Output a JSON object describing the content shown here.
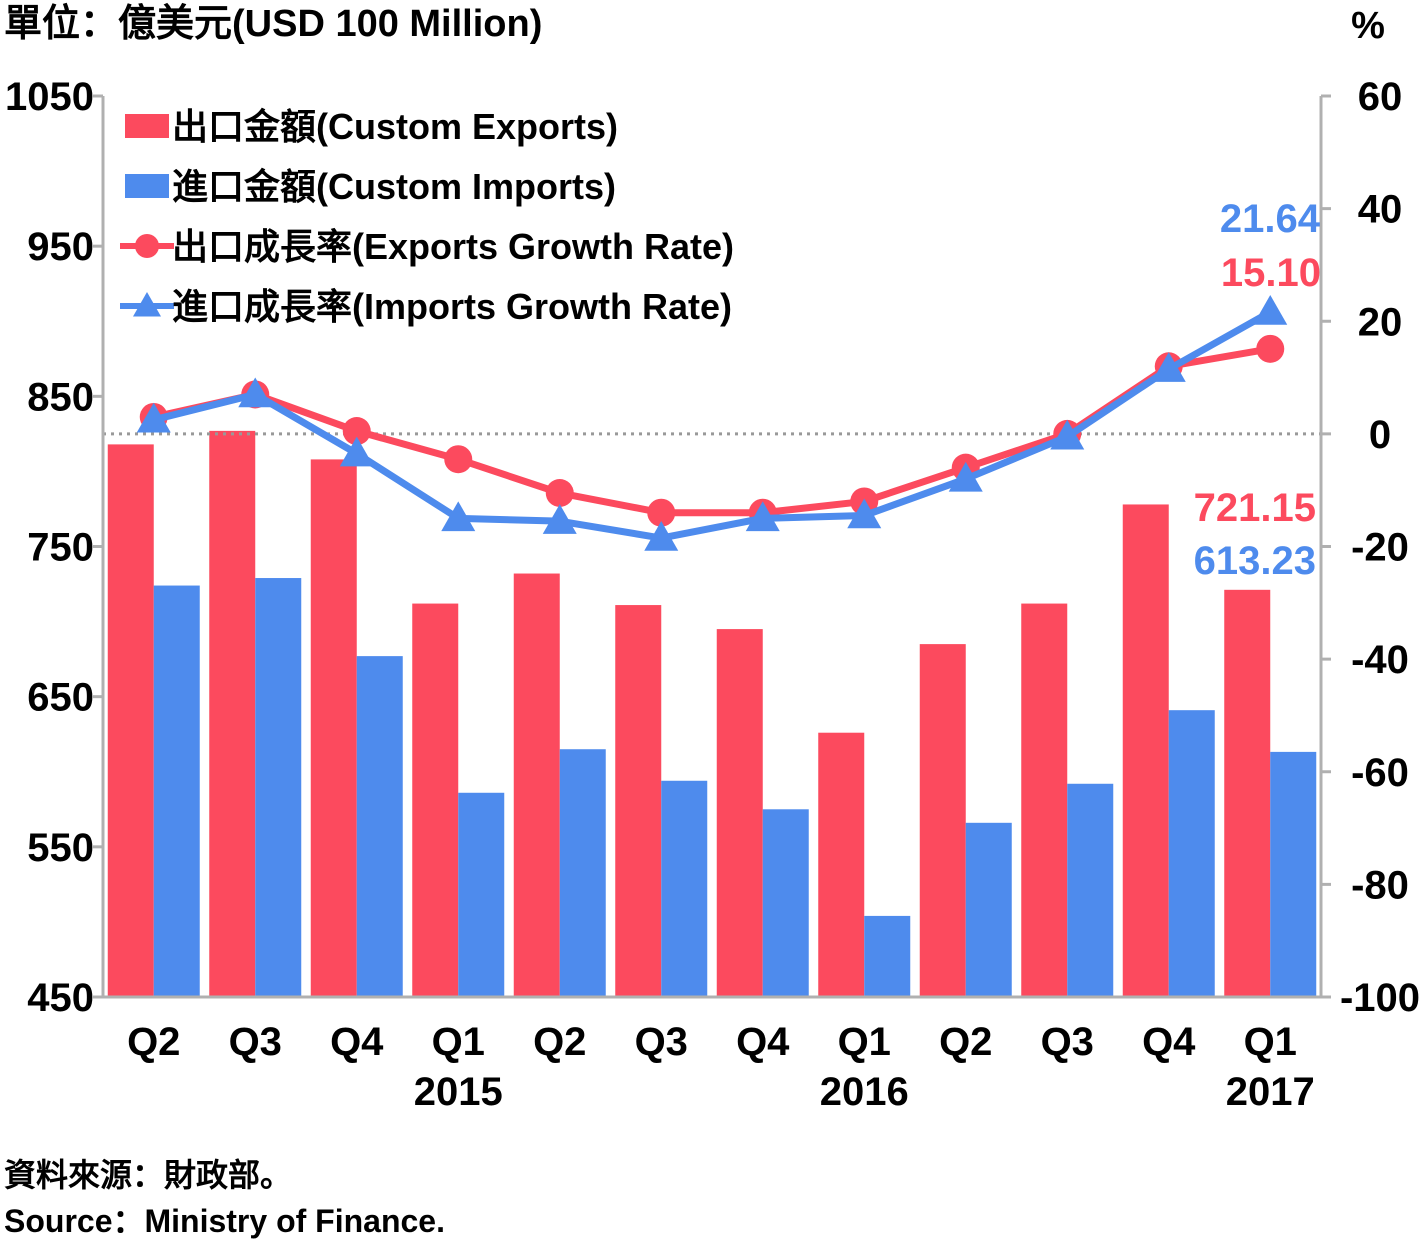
{
  "chart_data": {
    "type": "bar",
    "y_left_label": "單位：億美元(USD 100 Million)",
    "y_right_label": "%",
    "ylim_left": [
      450,
      1050
    ],
    "yticks_left": [
      450,
      550,
      650,
      750,
      850,
      950,
      1050
    ],
    "ylim_right": [
      -100,
      60
    ],
    "yticks_right": [
      -100,
      -80,
      -60,
      -40,
      -20,
      0,
      20,
      40,
      60
    ],
    "categories": [
      "Q2",
      "Q3",
      "Q4",
      "Q1",
      "Q2",
      "Q3",
      "Q4",
      "Q1",
      "Q2",
      "Q3",
      "Q4",
      "Q1"
    ],
    "year_labels": [
      {
        "label": "2015",
        "index": 3
      },
      {
        "label": "2016",
        "index": 7
      },
      {
        "label": "2017",
        "index": 11
      }
    ],
    "grid": false,
    "zero_line": "dotted",
    "legend_position": "top-left",
    "series": [
      {
        "name": "出口金額(Custom Exports)",
        "kind": "bar",
        "axis": "left",
        "color": "#fc4a5e",
        "values": [
          818,
          827,
          808,
          712,
          732,
          711,
          695,
          626,
          685,
          712,
          778,
          721.15
        ]
      },
      {
        "name": "進口金額(Custom Imports)",
        "kind": "bar",
        "axis": "left",
        "color": "#4e8bed",
        "values": [
          724,
          729,
          677,
          586,
          615,
          594,
          575,
          504,
          566,
          592,
          641,
          613.23
        ]
      },
      {
        "name": "出口成長率(Exports Growth Rate)",
        "kind": "line",
        "marker": "circle",
        "axis": "right",
        "color": "#fc4a5e",
        "values": [
          3,
          7,
          0.5,
          -4.5,
          -10.5,
          -14,
          -14,
          -12,
          -6,
          0,
          12,
          15.1
        ]
      },
      {
        "name": "進口成長率(Imports Growth Rate)",
        "kind": "line",
        "marker": "triangle",
        "axis": "right",
        "color": "#4e8bed",
        "values": [
          2.5,
          7,
          -3.5,
          -15,
          -15.5,
          -18.5,
          -15,
          -14.5,
          -8,
          -0.5,
          11.5,
          21.64
        ]
      }
    ],
    "annotations": [
      {
        "text": "21.64",
        "color": "#4e8bed"
      },
      {
        "text": "15.10",
        "color": "#fc4a5e"
      },
      {
        "text": "721.15",
        "color": "#fc4a5e"
      },
      {
        "text": "613.23",
        "color": "#4e8bed"
      }
    ]
  },
  "source": {
    "zh": "資料來源：財政部。",
    "en": "Source：Ministry of Finance."
  }
}
